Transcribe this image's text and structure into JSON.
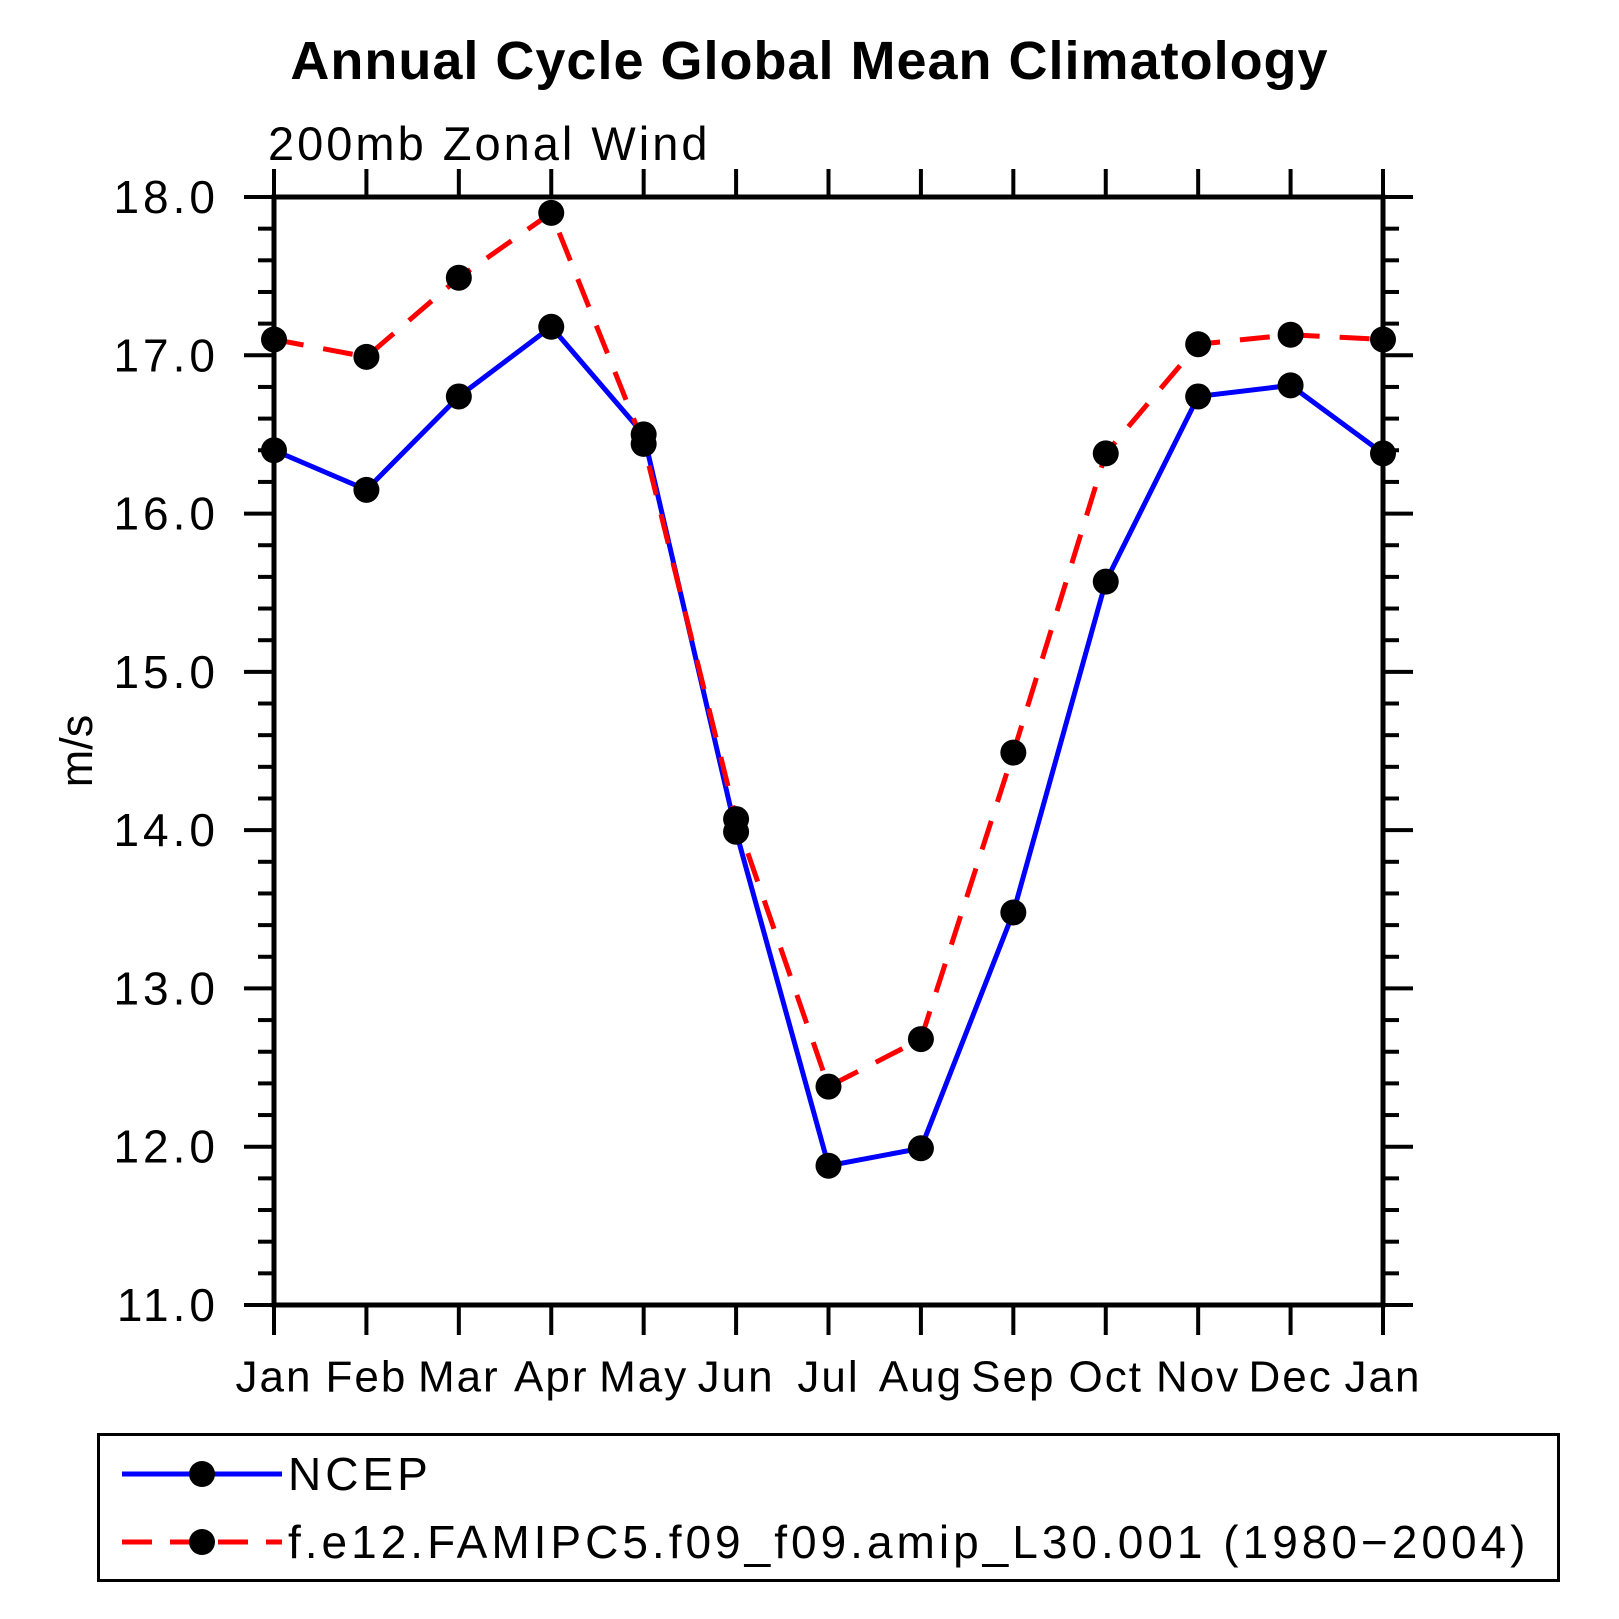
{
  "title": "Annual Cycle Global Mean Climatology",
  "subtitle": "200mb Zonal Wind",
  "ylabel": "m/s",
  "colors": {
    "ncep_line": "#0000ff",
    "model_line": "#ff0000",
    "marker": "#000000",
    "axis": "#000000"
  },
  "chart_data": {
    "type": "line",
    "title": "Annual Cycle Global Mean Climatology",
    "subtitle": "200mb Zonal Wind",
    "ylabel": "m/s",
    "categories": [
      "Jan",
      "Feb",
      "Mar",
      "Apr",
      "May",
      "Jun",
      "Jul",
      "Aug",
      "Sep",
      "Oct",
      "Nov",
      "Dec",
      "Jan"
    ],
    "series": [
      {
        "name": "NCEP",
        "color": "#0000ff",
        "dash": "solid",
        "marker": "filled-circle",
        "marker_color": "#000000",
        "values": [
          16.4,
          16.15,
          16.74,
          17.18,
          16.5,
          13.99,
          11.88,
          11.99,
          13.48,
          15.57,
          16.74,
          16.81,
          16.38
        ]
      },
      {
        "name": "f.e12.FAMIPC5.f09_f09.amip_L30.001 (1980−2004)",
        "color": "#ff0000",
        "dash": "dashed",
        "marker": "filled-circle",
        "marker_color": "#000000",
        "values": [
          17.1,
          16.99,
          17.49,
          17.9,
          16.44,
          14.07,
          12.38,
          12.68,
          14.49,
          16.38,
          17.07,
          17.13,
          17.1
        ]
      }
    ],
    "ylim": [
      11.0,
      18.0
    ],
    "ytick_major": 1.0,
    "ytick_minor": 0.2,
    "yticks": [
      "18.0",
      "17.0",
      "16.0",
      "15.0",
      "14.0",
      "13.0",
      "12.0",
      "11.0"
    ],
    "xlabel": "",
    "grid": false,
    "legend_position": "bottom-left-box"
  }
}
